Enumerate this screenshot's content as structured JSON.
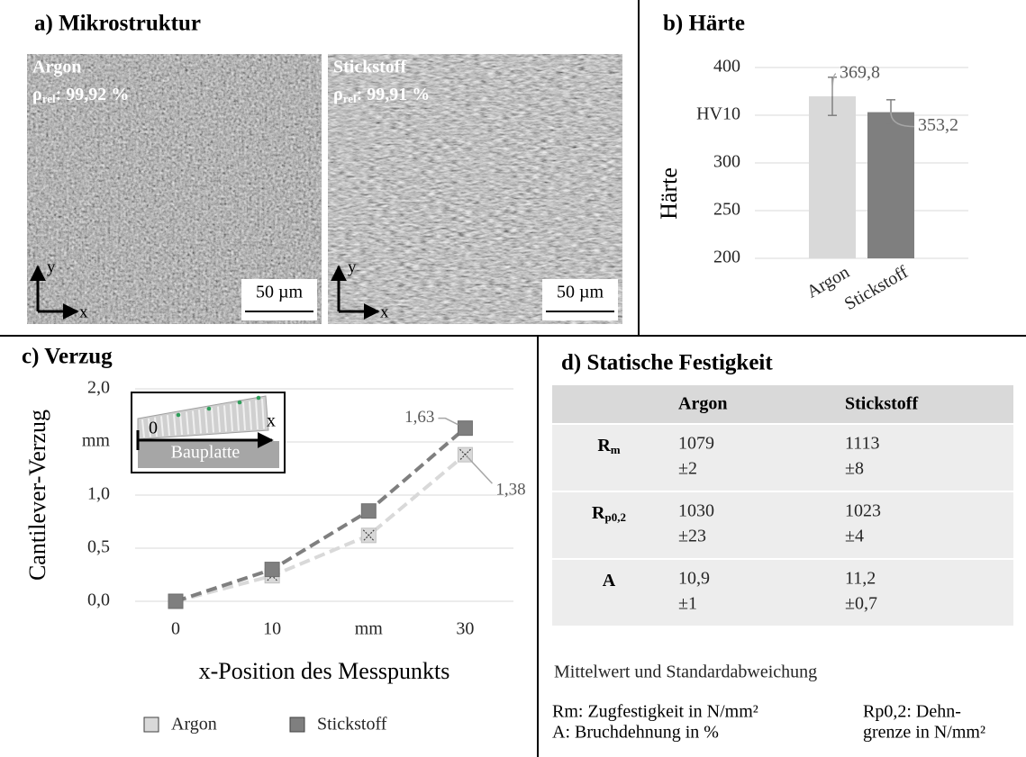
{
  "micro": {
    "title": "a) Mikrostruktur",
    "images": [
      {
        "label": "Argon",
        "density_symbol": "ρ",
        "density_index": "rel",
        "density_value": ": 99,92 %",
        "scale": "50 µm",
        "axis_y": "y",
        "axis_x": "x"
      },
      {
        "label": "Stickstoff",
        "density_symbol": "ρ",
        "density_index": "rel",
        "density_value": ": 99,91 %",
        "scale": "50 µm",
        "axis_y": "y",
        "axis_x": "x"
      }
    ]
  },
  "chart_data": [
    {
      "type": "bar",
      "title": "b) Härte",
      "ylabel": "Härte",
      "categories": [
        "Argon",
        "Stickstoff"
      ],
      "values": [
        369.8,
        353.2
      ],
      "value_labels": [
        "369,8",
        "353,2"
      ],
      "errors": [
        20,
        13
      ],
      "colors": [
        "#d9d9d9",
        "#7f7f7f"
      ],
      "error_color": "#7f7f7f",
      "ylim": [
        200,
        400
      ],
      "yticks": [
        200,
        250,
        300,
        {
          "value": 350,
          "label": "HV10"
        },
        400
      ],
      "grid": true
    },
    {
      "type": "line",
      "title": "c) Verzug",
      "xlabel": "x-Position des Messpunkts",
      "ylabel": "Cantilever-Verzug",
      "x": [
        0,
        10,
        20,
        30
      ],
      "xlim": [
        -4.2,
        35
      ],
      "xticks": [
        0,
        10,
        {
          "value": 20,
          "label": "mm"
        },
        30
      ],
      "ylim": [
        0,
        2
      ],
      "yticks": [
        {
          "value": 0,
          "label": "0,0"
        },
        {
          "value": 0.5,
          "label": "0,5"
        },
        {
          "value": 1,
          "label": "1,0"
        },
        {
          "value": 1.5,
          "label": "mm"
        },
        {
          "value": 2,
          "label": "2,0"
        }
      ],
      "grid": true,
      "legend": "bottom",
      "series": [
        {
          "name": "Argon",
          "color": "#d9d9d9",
          "marker": "square-cross",
          "values": [
            0,
            0.24,
            0.62,
            1.38
          ],
          "value_labels": [
            null,
            null,
            null,
            "1,38"
          ]
        },
        {
          "name": "Stickstoff",
          "color": "#7f7f7f",
          "marker": "square",
          "values": [
            0,
            0.3,
            0.85,
            1.63
          ],
          "value_labels": [
            null,
            null,
            null,
            "1,63"
          ]
        }
      ],
      "inset": {
        "origin": "0",
        "axis": "x",
        "plate": "Bauplatte"
      }
    }
  ],
  "table": {
    "title": "d) Statische Festigkeit",
    "columns": [
      "Argon",
      "Stickstoff"
    ],
    "rows": [
      {
        "symbol": "R",
        "index": "m",
        "cells": [
          {
            "mean": "1079",
            "sd": "±2"
          },
          {
            "mean": "1113",
            "sd": "±8"
          }
        ]
      },
      {
        "symbol": "R",
        "index": "p0,2",
        "cells": [
          {
            "mean": "1030",
            "sd": "±23"
          },
          {
            "mean": "1023",
            "sd": "±4"
          }
        ]
      },
      {
        "symbol": "A",
        "cells": [
          {
            "mean": "10,9",
            "sd": "±1"
          },
          {
            "mean": "11,2",
            "sd": "±0,7"
          }
        ]
      }
    ],
    "caption": "Mittelwert und Standardabweichung",
    "notes": [
      [
        "Rm: Zugfestigkeit in N/mm²",
        "A: Bruchdehnung in %"
      ],
      [
        "Rp0,2: Dehn-",
        "grenze in N/mm²"
      ]
    ]
  }
}
